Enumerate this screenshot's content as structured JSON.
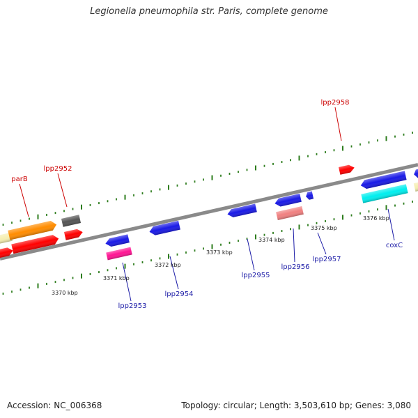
{
  "title": "Legionella pneumophila str. Paris, complete genome",
  "footer": {
    "accession": "Accession: NC_006368",
    "stats": "Topology: circular; Length: 3,503,610 bp; Genes: 3,080"
  },
  "colors": {
    "backbone": "#8a8a8a",
    "tick": "#2e7d1e",
    "plus_label": "#cc0000",
    "minus_label": "#1a1aa6"
  },
  "scale_labels": [
    {
      "text": "3370 kbp",
      "kbp": 3370
    },
    {
      "text": "3371 kbp",
      "kbp": 3371
    },
    {
      "text": "3372 kbp",
      "kbp": 3372
    },
    {
      "text": "3373 kbp",
      "kbp": 3373
    },
    {
      "text": "3374 kbp",
      "kbp": 3374
    },
    {
      "text": "3375 kbp",
      "kbp": 3375
    },
    {
      "text": "3376 kbp",
      "kbp": 3376
    }
  ],
  "gene_labels": [
    {
      "text": "parB",
      "strand": "plus"
    },
    {
      "text": "lpp2952",
      "strand": "plus"
    },
    {
      "text": "lpp2958",
      "strand": "plus"
    },
    {
      "text": "lpp2953",
      "strand": "minus"
    },
    {
      "text": "lpp2954",
      "strand": "minus"
    },
    {
      "text": "lpp2955",
      "strand": "minus"
    },
    {
      "text": "lpp2956",
      "strand": "minus"
    },
    {
      "text": "lpp2957",
      "strand": "minus"
    },
    {
      "text": "coxC",
      "strand": "minus"
    }
  ],
  "features": [
    {
      "name": "pale-yellow-feature-a",
      "color": "#f5eeb0"
    },
    {
      "name": "orange-feature",
      "color": "#ff8c00"
    },
    {
      "name": "gray-feature",
      "color": "#555555"
    },
    {
      "name": "red-feature-a",
      "color": "#ff0000"
    },
    {
      "name": "red-feature-b",
      "color": "#ff0000"
    },
    {
      "name": "red-feature-c",
      "color": "#ff0000"
    },
    {
      "name": "red-feature-lpp2958",
      "color": "#ff0000"
    },
    {
      "name": "blue-feature-lpp2953",
      "color": "#1a1ae6"
    },
    {
      "name": "magenta-feature-lpp2953",
      "color": "#ff1493"
    },
    {
      "name": "blue-feature-lpp2954",
      "color": "#1a1ae6"
    },
    {
      "name": "blue-feature-lpp2955",
      "color": "#1a1ae6"
    },
    {
      "name": "blue-feature-3374",
      "color": "#1a1ae6"
    },
    {
      "name": "salmon-feature-lpp2956",
      "color": "#f08080"
    },
    {
      "name": "blue-feature-small",
      "color": "#1a1ae6"
    },
    {
      "name": "blue-feature-long",
      "color": "#1a1ae6"
    },
    {
      "name": "cyan-feature-coxc",
      "color": "#00eeee"
    },
    {
      "name": "blue-feature-edge",
      "color": "#1a1ae6"
    },
    {
      "name": "pale-yellow-feature-b",
      "color": "#f5eeb0"
    }
  ]
}
